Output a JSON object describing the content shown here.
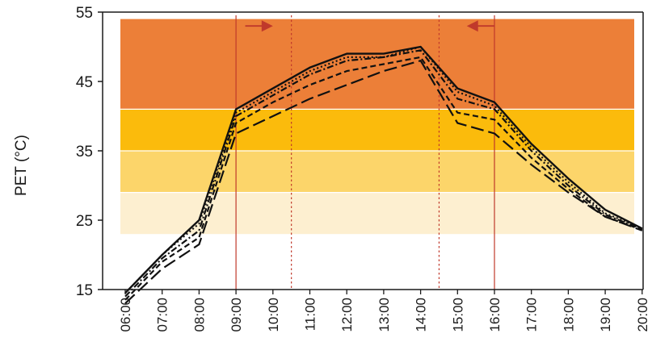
{
  "chart_data": {
    "type": "line",
    "title": "",
    "xlabel": "",
    "ylabel": "PET (°C)",
    "ylim": [
      15,
      55
    ],
    "yticks": [
      15,
      25,
      35,
      45,
      55
    ],
    "grid": false,
    "legend": "none",
    "categories": [
      "06:00",
      "07:00",
      "08:00",
      "09:00",
      "10:00",
      "11:00",
      "12:00",
      "13:00",
      "14:00",
      "15:00",
      "16:00",
      "17:00",
      "18:00",
      "19:00",
      "20:00"
    ],
    "comfort_bands": [
      {
        "from": 23,
        "to": 29,
        "color": "#fdefd0"
      },
      {
        "from": 29,
        "to": 35,
        "color": "#fcd56a"
      },
      {
        "from": 35,
        "to": 41,
        "color": "#fbbb0c"
      },
      {
        "from": 41,
        "to": 54,
        "color": "#ec7f38"
      }
    ],
    "vertical_markers": [
      {
        "x": "09:00",
        "style": "solid",
        "color": "#c0392b"
      },
      {
        "x": "10:30",
        "style": "dotted",
        "color": "#c0392b"
      },
      {
        "x": "14:30",
        "style": "dotted",
        "color": "#c0392b"
      },
      {
        "x": "16:00",
        "style": "solid",
        "color": "#c0392b"
      }
    ],
    "annotations": [
      {
        "type": "arrow",
        "direction": "right",
        "from": "09:15",
        "to": "10:00",
        "y": 53,
        "color": "#c0392b"
      },
      {
        "type": "arrow",
        "direction": "left",
        "from": "16:00",
        "to": "15:15",
        "y": 53,
        "color": "#c0392b"
      }
    ],
    "series": [
      {
        "style": "solid",
        "values": [
          14.5,
          20,
          25,
          41,
          44,
          47,
          49,
          49,
          50,
          44,
          42,
          36,
          31,
          26.5,
          23.8
        ]
      },
      {
        "style": "dotted",
        "values": [
          14.5,
          20,
          24.5,
          40.5,
          43.5,
          46.5,
          48.5,
          48.5,
          50,
          43.5,
          41.5,
          35.5,
          30.5,
          26,
          23.8
        ]
      },
      {
        "style": "dash-dot",
        "values": [
          14,
          19.5,
          23.5,
          40,
          43,
          46,
          48,
          48.5,
          49.5,
          42.5,
          41,
          35,
          30,
          25.8,
          23.7
        ]
      },
      {
        "style": "dashed",
        "values": [
          13.5,
          19,
          22.5,
          39,
          42,
          44.5,
          46.5,
          47.5,
          48.5,
          40.5,
          39.5,
          34,
          29.5,
          25.5,
          23.6
        ]
      },
      {
        "style": "long-dash",
        "values": [
          13,
          18,
          21.5,
          37.5,
          40,
          42.5,
          44.5,
          46.5,
          48,
          39,
          37.5,
          33,
          29,
          25.5,
          23.5
        ]
      }
    ]
  }
}
